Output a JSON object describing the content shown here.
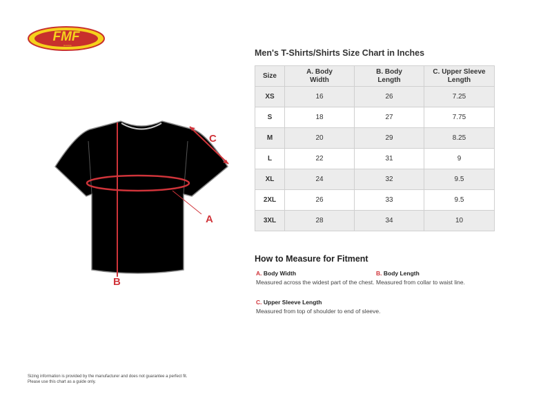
{
  "logo": {
    "text": "FMF",
    "subtext": "RACING"
  },
  "diagram": {
    "labels": {
      "a": "A",
      "b": "B",
      "c": "C"
    },
    "colors": {
      "measure": "#d0343a",
      "shirt": "#000000"
    }
  },
  "chart": {
    "title": "Men's T-Shirts/Shirts Size Chart in Inches",
    "headers": [
      [
        "Size",
        ""
      ],
      [
        "A. Body",
        "Width"
      ],
      [
        "B. Body",
        "Length"
      ],
      [
        "C. Upper Sleeve",
        "Length"
      ]
    ],
    "rows": [
      [
        "XS",
        "16",
        "26",
        "7.25"
      ],
      [
        "S",
        "18",
        "27",
        "7.75"
      ],
      [
        "M",
        "20",
        "29",
        "8.25"
      ],
      [
        "L",
        "22",
        "31",
        "9"
      ],
      [
        "XL",
        "24",
        "32",
        "9.5"
      ],
      [
        "2XL",
        "26",
        "33",
        "9.5"
      ],
      [
        "3XL",
        "28",
        "34",
        "10"
      ]
    ]
  },
  "measure": {
    "title": "How to Measure for Fitment",
    "items": [
      {
        "letter": "A.",
        "name": "Body Width",
        "desc": "Measured across the widest part of the chest."
      },
      {
        "letter": "B.",
        "name": "Body Length",
        "desc": "Measured from collar to waist line."
      },
      {
        "letter": "C.",
        "name": "Upper Sleeve Length",
        "desc": "Measured from top of shoulder to end of sleeve."
      }
    ]
  },
  "disclaimer": {
    "line1": "Sizing information is provided by the manufacturer and does not guarantee a perfect fit.",
    "line2": "Please use this chart as a guide only."
  }
}
